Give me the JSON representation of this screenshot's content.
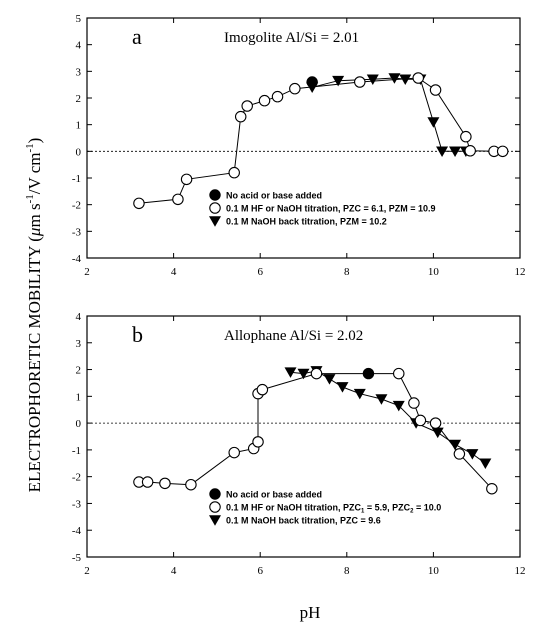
{
  "chart_data": [
    {
      "type": "scatter",
      "panel_letter": "a",
      "title": "Imogolite Al/Si = 2.01",
      "xlim": [
        2,
        12
      ],
      "ylim": [
        -4,
        5
      ],
      "x_ticks": [
        2,
        4,
        6,
        8,
        10,
        12
      ],
      "y_ticks": [
        -4,
        -3,
        -2,
        -1,
        0,
        1,
        2,
        3,
        4,
        5
      ],
      "zero_line": "dotted",
      "legend_position": "lower-center",
      "series": [
        {
          "name": "No acid or base added",
          "marker": "filled-circle",
          "line": false,
          "points": [
            [
              7.2,
              2.6
            ]
          ]
        },
        {
          "name": "0.1 M HF or NaOH titration, PZC = 6.1, PZM = 10.9",
          "marker": "open-circle",
          "line": true,
          "points": [
            [
              3.2,
              -1.95
            ],
            [
              4.1,
              -1.8
            ],
            [
              4.3,
              -1.05
            ],
            [
              5.4,
              -0.8
            ],
            [
              5.55,
              1.3
            ],
            [
              5.7,
              1.7
            ],
            [
              6.1,
              1.9
            ],
            [
              6.4,
              2.05
            ],
            [
              6.8,
              2.35
            ],
            [
              8.3,
              2.6
            ],
            [
              9.65,
              2.75
            ],
            [
              10.05,
              2.3
            ],
            [
              10.75,
              0.55
            ],
            [
              10.85,
              0.02
            ],
            [
              11.4,
              0.0
            ],
            [
              11.6,
              0.0
            ]
          ]
        },
        {
          "name": "0.1 M NaOH back titration, PZM = 10.2",
          "marker": "filled-triangle-down",
          "line": true,
          "points": [
            [
              7.2,
              2.4
            ],
            [
              7.8,
              2.65
            ],
            [
              8.6,
              2.7
            ],
            [
              9.1,
              2.75
            ],
            [
              9.35,
              2.7
            ],
            [
              9.7,
              2.7
            ],
            [
              10.0,
              1.1
            ],
            [
              10.2,
              0.0
            ],
            [
              10.5,
              0.0
            ],
            [
              10.75,
              0.0
            ]
          ]
        }
      ],
      "legend": [
        {
          "marker": "filled-circle",
          "label": "No acid or base added"
        },
        {
          "marker": "open-circle",
          "label": "0.1 M HF or NaOH titration, PZC = 6.1, PZM = 10.9"
        },
        {
          "marker": "filled-triangle-down",
          "label": "0.1 M NaOH back titration, PZM = 10.2"
        }
      ]
    },
    {
      "type": "scatter",
      "panel_letter": "b",
      "title": "Allophane Al/Si = 2.02",
      "xlim": [
        2,
        12
      ],
      "ylim": [
        -5,
        4
      ],
      "x_ticks": [
        2,
        4,
        6,
        8,
        10,
        12
      ],
      "y_ticks": [
        -5,
        -4,
        -3,
        -2,
        -1,
        0,
        1,
        2,
        3,
        4
      ],
      "zero_line": "dotted",
      "legend_position": "lower-center",
      "series": [
        {
          "name": "No acid or base added",
          "marker": "filled-circle",
          "line": false,
          "points": [
            [
              8.5,
              1.85
            ]
          ]
        },
        {
          "name": "0.1 M HF or NaOH titration, PZC1 = 5.9, PZC2 = 10.0",
          "marker": "open-circle",
          "line": true,
          "points": [
            [
              3.2,
              -2.2
            ],
            [
              3.4,
              -2.2
            ],
            [
              3.8,
              -2.25
            ],
            [
              4.4,
              -2.3
            ],
            [
              5.4,
              -1.1
            ],
            [
              5.85,
              -0.95
            ],
            [
              5.95,
              -0.7
            ],
            [
              5.95,
              1.1
            ],
            [
              6.05,
              1.25
            ],
            [
              7.3,
              1.85
            ],
            [
              9.2,
              1.85
            ],
            [
              9.55,
              0.75
            ],
            [
              9.7,
              0.1
            ],
            [
              10.05,
              0.0
            ],
            [
              10.6,
              -1.15
            ],
            [
              11.35,
              -2.45
            ]
          ]
        },
        {
          "name": "0.1 M NaOH back titration, PZC = 9.6",
          "marker": "filled-triangle-down",
          "line": true,
          "points": [
            [
              6.7,
              1.9
            ],
            [
              7.0,
              1.85
            ],
            [
              7.3,
              1.95
            ],
            [
              7.6,
              1.65
            ],
            [
              7.9,
              1.35
            ],
            [
              8.3,
              1.1
            ],
            [
              8.8,
              0.9
            ],
            [
              9.2,
              0.65
            ],
            [
              9.6,
              0.0
            ],
            [
              10.1,
              -0.35
            ],
            [
              10.5,
              -0.8
            ],
            [
              10.9,
              -1.15
            ],
            [
              11.2,
              -1.5
            ]
          ]
        }
      ],
      "legend": [
        {
          "marker": "filled-circle",
          "label": "No acid or base added"
        },
        {
          "marker": "open-circle",
          "label": "0.1 M HF or NaOH titration, PZC",
          "sub1": "1",
          "mid": " = 5.9, PZC",
          "sub2": "2",
          "tail": " = 10.0"
        },
        {
          "marker": "filled-triangle-down",
          "label": "0.1 M NaOH back titration, PZC = 9.6"
        }
      ]
    }
  ],
  "axes": {
    "xlabel": "pH",
    "ylabel_main": "ELECTROPHORETIC MOBILITY (",
    "ylabel_mu": "μ",
    "ylabel_unit1": "m s",
    "ylabel_exp1": "-1",
    "ylabel_sep": "/V cm",
    "ylabel_exp2": "-1",
    "ylabel_close": ")"
  }
}
